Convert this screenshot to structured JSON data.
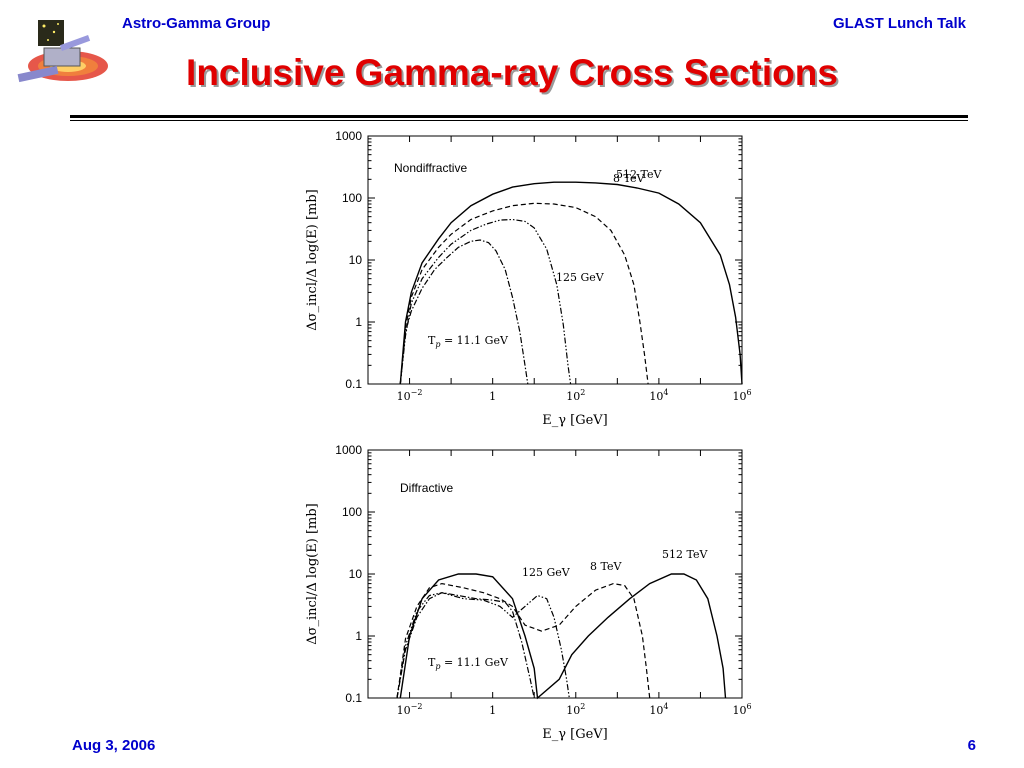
{
  "header": {
    "left": "Astro-Gamma Group",
    "right": "GLAST Lunch Talk"
  },
  "title": "Inclusive Gamma-ray Cross Sections",
  "footer": {
    "date": "Aug 3, 2006",
    "page": "6"
  },
  "logo": {
    "icon": "satellite-logo-icon"
  },
  "colors": {
    "header_text": "#0000cc",
    "title": "#e00000",
    "axes": "#000000"
  },
  "chart_data": [
    {
      "type": "line",
      "title": "",
      "panel_label": "Nondiffractive",
      "xlabel": "E_γ [GeV]",
      "ylabel": "Δσ_incl/Δ log(E) [mb]",
      "xscale": "log",
      "yscale": "log",
      "xlim": [
        0.001,
        1000000
      ],
      "ylim": [
        0.1,
        1000
      ],
      "xticks": [
        0.01,
        1,
        100,
        10000,
        1000000
      ],
      "xtick_labels": [
        "10−2",
        "1",
        "102",
        "104",
        "106"
      ],
      "yticks": [
        0.1,
        1,
        10,
        100,
        1000
      ],
      "ytick_labels": [
        "0.1",
        "1",
        "10",
        "100",
        "1000"
      ],
      "series": [
        {
          "name": "Tp = 11.1 GeV",
          "style": "dashdot",
          "points": [
            [
              0.006,
              0.1
            ],
            [
              0.008,
              0.7
            ],
            [
              0.011,
              1.5
            ],
            [
              0.02,
              3.5
            ],
            [
              0.04,
              7
            ],
            [
              0.08,
              11
            ],
            [
              0.15,
              16
            ],
            [
              0.3,
              20
            ],
            [
              0.5,
              21
            ],
            [
              0.8,
              19
            ],
            [
              1.2,
              14
            ],
            [
              2,
              7
            ],
            [
              3,
              2.5
            ],
            [
              4.5,
              0.7
            ],
            [
              6,
              0.2
            ],
            [
              7,
              0.1
            ]
          ]
        },
        {
          "name": "125 GeV",
          "style": "dashdotdot",
          "points": [
            [
              0.006,
              0.1
            ],
            [
              0.008,
              0.6
            ],
            [
              0.011,
              2
            ],
            [
              0.02,
              5
            ],
            [
              0.05,
              11
            ],
            [
              0.1,
              18
            ],
            [
              0.3,
              30
            ],
            [
              0.7,
              38
            ],
            [
              1.5,
              44
            ],
            [
              3,
              45
            ],
            [
              6,
              42
            ],
            [
              10,
              33
            ],
            [
              20,
              15
            ],
            [
              35,
              4
            ],
            [
              50,
              0.9
            ],
            [
              65,
              0.2
            ],
            [
              75,
              0.1
            ]
          ]
        },
        {
          "name": "8 TeV",
          "style": "dashed",
          "points": [
            [
              0.006,
              0.1
            ],
            [
              0.008,
              0.8
            ],
            [
              0.011,
              2.5
            ],
            [
              0.02,
              7
            ],
            [
              0.05,
              16
            ],
            [
              0.1,
              26
            ],
            [
              0.3,
              45
            ],
            [
              1,
              62
            ],
            [
              3,
              75
            ],
            [
              10,
              82
            ],
            [
              30,
              80
            ],
            [
              100,
              70
            ],
            [
              300,
              50
            ],
            [
              700,
              30
            ],
            [
              1500,
              12
            ],
            [
              2500,
              4
            ],
            [
              3500,
              1
            ],
            [
              4500,
              0.3
            ],
            [
              5500,
              0.1
            ]
          ]
        },
        {
          "name": "512 TeV",
          "style": "solid",
          "points": [
            [
              0.006,
              0.1
            ],
            [
              0.008,
              1
            ],
            [
              0.011,
              3
            ],
            [
              0.02,
              9
            ],
            [
              0.05,
              22
            ],
            [
              0.1,
              40
            ],
            [
              0.3,
              75
            ],
            [
              1,
              115
            ],
            [
              3,
              150
            ],
            [
              10,
              170
            ],
            [
              30,
              180
            ],
            [
              100,
              180
            ],
            [
              300,
              175
            ],
            [
              1000,
              165
            ],
            [
              3000,
              145
            ],
            [
              10000,
              120
            ],
            [
              30000,
              80
            ],
            [
              100000,
              40
            ],
            [
              300000,
              12
            ],
            [
              500000,
              4
            ],
            [
              700000,
              1.2
            ],
            [
              900000,
              0.3
            ],
            [
              1000000,
              0.1
            ]
          ]
        }
      ],
      "annotations": [
        "512 TeV",
        "8 TeV",
        "125 GeV",
        "Tp = 11.1 GeV"
      ]
    },
    {
      "type": "line",
      "title": "",
      "panel_label": "Diffractive",
      "xlabel": "E_γ [GeV]",
      "ylabel": "Δσ_incl/Δ log(E) [mb]",
      "xscale": "log",
      "yscale": "log",
      "xlim": [
        0.001,
        1000000
      ],
      "ylim": [
        0.1,
        1000
      ],
      "xticks": [
        0.01,
        1,
        100,
        10000,
        1000000
      ],
      "xtick_labels": [
        "10−2",
        "1",
        "102",
        "104",
        "106"
      ],
      "yticks": [
        0.1,
        1,
        10,
        100,
        1000
      ],
      "ytick_labels": [
        "0.1",
        "1",
        "10",
        "100",
        "1000"
      ],
      "series": [
        {
          "name": "Tp = 11.1 GeV",
          "style": "dashdot",
          "points": [
            [
              0.005,
              0.1
            ],
            [
              0.008,
              0.6
            ],
            [
              0.015,
              2
            ],
            [
              0.03,
              4
            ],
            [
              0.06,
              5
            ],
            [
              0.15,
              4.5
            ],
            [
              0.4,
              4
            ],
            [
              1,
              3.8
            ],
            [
              2,
              3.5
            ],
            [
              3,
              2.5
            ],
            [
              5,
              0.8
            ],
            [
              8,
              0.2
            ],
            [
              10,
              0.1
            ]
          ]
        },
        {
          "name": "125 GeV",
          "style": "dashdotdot",
          "points": [
            [
              0.005,
              0.1
            ],
            [
              0.008,
              0.7
            ],
            [
              0.015,
              2.5
            ],
            [
              0.03,
              4.5
            ],
            [
              0.06,
              5
            ],
            [
              0.2,
              4
            ],
            [
              0.6,
              3.8
            ],
            [
              1.5,
              3
            ],
            [
              3,
              2
            ],
            [
              6,
              3
            ],
            [
              12,
              4.5
            ],
            [
              20,
              4
            ],
            [
              30,
              2
            ],
            [
              45,
              0.6
            ],
            [
              60,
              0.2
            ],
            [
              70,
              0.1
            ]
          ]
        },
        {
          "name": "8 TeV",
          "style": "dashed",
          "points": [
            [
              0.005,
              0.1
            ],
            [
              0.008,
              0.9
            ],
            [
              0.015,
              3
            ],
            [
              0.03,
              6
            ],
            [
              0.06,
              7
            ],
            [
              0.2,
              6
            ],
            [
              0.6,
              5
            ],
            [
              1.5,
              4
            ],
            [
              3,
              3
            ],
            [
              6,
              1.5
            ],
            [
              15,
              1.2
            ],
            [
              40,
              1.5
            ],
            [
              100,
              3
            ],
            [
              300,
              5.5
            ],
            [
              800,
              7
            ],
            [
              1500,
              6.5
            ],
            [
              2500,
              4
            ],
            [
              4000,
              1
            ],
            [
              5000,
              0.3
            ],
            [
              6000,
              0.1
            ]
          ]
        },
        {
          "name": "512 TeV",
          "style": "solid",
          "points": [
            [
              0.006,
              0.1
            ],
            [
              0.01,
              1
            ],
            [
              0.02,
              4
            ],
            [
              0.05,
              8
            ],
            [
              0.15,
              10
            ],
            [
              0.4,
              10
            ],
            [
              1,
              9
            ],
            [
              3,
              4
            ],
            [
              6,
              1
            ],
            [
              10,
              0.3
            ],
            [
              12,
              0.1
            ],
            [
              40,
              0.2
            ],
            [
              80,
              0.5
            ],
            [
              200,
              1
            ],
            [
              600,
              2
            ],
            [
              2000,
              4
            ],
            [
              6000,
              7
            ],
            [
              20000,
              10
            ],
            [
              40000,
              10
            ],
            [
              80000,
              8
            ],
            [
              150000,
              4
            ],
            [
              250000,
              1
            ],
            [
              350000,
              0.3
            ],
            [
              400000,
              0.1
            ]
          ]
        }
      ],
      "annotations": [
        "125 GeV",
        "8 TeV",
        "512 TeV",
        "Tp = 11.1 GeV"
      ]
    }
  ]
}
